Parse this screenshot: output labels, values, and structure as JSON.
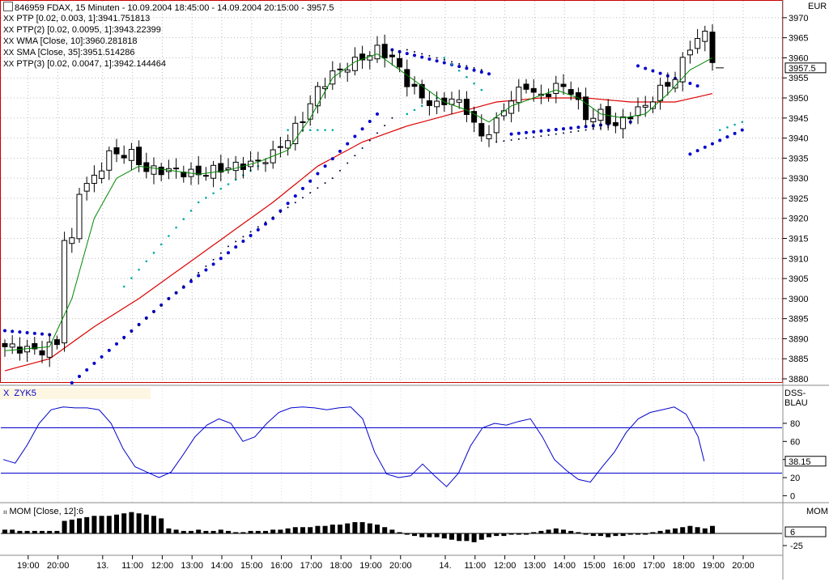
{
  "header": {
    "symbol_line": "846959  FDAX, 15 Minuten - 10.09.2004 18:45:00 - 14.09.2004 20:15:00 - 3957.5",
    "currency": "EUR"
  },
  "legend": [
    {
      "marker": "XX",
      "text": "PTP [0.02, 0.003, 1]:3941.751813",
      "color": "#0000cc"
    },
    {
      "marker": "XX",
      "text": "PTP(2) [0.02, 0.0095, 1]:3943.22399",
      "color": "#00aaaa"
    },
    {
      "marker": "XX",
      "text": "WMA [Close, 10]:3960.281818",
      "color": "#008800"
    },
    {
      "marker": "XX",
      "text": "SMA [Close, 35]:3951.514286",
      "color": "#cc0000"
    },
    {
      "marker": "XX",
      "text": "PTP(3) [0.02, 0.0047, 1]:3942.144464",
      "color": "#000033"
    }
  ],
  "colors": {
    "frame": "#cc0000",
    "wma": "#008800",
    "sma": "#dd0000",
    "ptp": "#0000cc",
    "ptp2": "#00aaaa",
    "ptp3": "#000033",
    "osc": "#0000cc"
  },
  "chart_data": [
    {
      "type": "candlestick",
      "title": "846959  FDAX, 15 Minuten - 10.09.2004 18:45:00 - 14.09.2004 20:15:00 - 3957.5",
      "ylabel": "EUR",
      "ylim": [
        3880,
        3973
      ],
      "yticks": [
        3880,
        3885,
        3890,
        3895,
        3900,
        3905,
        3910,
        3915,
        3920,
        3925,
        3930,
        3935,
        3940,
        3945,
        3950,
        3955,
        3960,
        3965,
        3970
      ],
      "last_value_label": "3957.5",
      "last_value": 3957.5,
      "bar_count": 96,
      "x_tick_labels": [
        {
          "bar": 4,
          "label": "19:00"
        },
        {
          "bar": 8,
          "label": "20:00"
        },
        {
          "bar": 14,
          "label": "13."
        },
        {
          "bar": 18,
          "label": "11:00"
        },
        {
          "bar": 22,
          "label": "12:00"
        },
        {
          "bar": 26,
          "label": "13:00"
        },
        {
          "bar": 30,
          "label": "14:00"
        },
        {
          "bar": 34,
          "label": "15:00"
        },
        {
          "bar": 38,
          "label": "16:00"
        },
        {
          "bar": 42,
          "label": "17:00"
        },
        {
          "bar": 46,
          "label": "18:00"
        },
        {
          "bar": 50,
          "label": "19:00"
        },
        {
          "bar": 54,
          "label": "20:00"
        },
        {
          "bar": 60,
          "label": "14."
        },
        {
          "bar": 64,
          "label": "11:00"
        },
        {
          "bar": 68,
          "label": "12:00"
        },
        {
          "bar": 72,
          "label": "13:00"
        },
        {
          "bar": 76,
          "label": "14:00"
        },
        {
          "bar": 80,
          "label": "15:00"
        },
        {
          "bar": 84,
          "label": "16:00"
        },
        {
          "bar": 88,
          "label": "17:00"
        },
        {
          "bar": 92,
          "label": "18:00"
        },
        {
          "bar": 96,
          "label": "19:00"
        },
        {
          "bar": 100,
          "label": "20:00"
        }
      ],
      "close_keypoints": [
        [
          0,
          3888
        ],
        [
          5,
          3887
        ],
        [
          7,
          3889
        ],
        [
          8,
          3915
        ],
        [
          9,
          3914
        ],
        [
          10,
          3927
        ],
        [
          12,
          3930
        ],
        [
          14,
          3936
        ],
        [
          17,
          3936
        ],
        [
          19,
          3932
        ],
        [
          22,
          3932
        ],
        [
          26,
          3931
        ],
        [
          28,
          3932
        ],
        [
          31,
          3933
        ],
        [
          34,
          3934
        ],
        [
          36,
          3936
        ],
        [
          38,
          3940
        ],
        [
          40,
          3945
        ],
        [
          42,
          3952
        ],
        [
          44,
          3956
        ],
        [
          46,
          3958
        ],
        [
          48,
          3960
        ],
        [
          50,
          3962
        ],
        [
          52,
          3960
        ],
        [
          54,
          3954
        ],
        [
          56,
          3950
        ],
        [
          58,
          3948
        ],
        [
          60,
          3950
        ],
        [
          62,
          3947
        ],
        [
          64,
          3940
        ],
        [
          66,
          3944
        ],
        [
          68,
          3950
        ],
        [
          70,
          3953
        ],
        [
          72,
          3950
        ],
        [
          74,
          3953
        ],
        [
          76,
          3952
        ],
        [
          78,
          3945
        ],
        [
          80,
          3946
        ],
        [
          82,
          3943
        ],
        [
          84,
          3946
        ],
        [
          86,
          3948
        ],
        [
          88,
          3952
        ],
        [
          90,
          3955
        ],
        [
          92,
          3963
        ],
        [
          94,
          3966
        ],
        [
          95,
          3960
        ],
        [
          96,
          3957.5
        ]
      ],
      "wma_keypoints": [
        [
          0,
          3887
        ],
        [
          6,
          3888
        ],
        [
          9,
          3900
        ],
        [
          12,
          3920
        ],
        [
          15,
          3930
        ],
        [
          18,
          3933
        ],
        [
          22,
          3932
        ],
        [
          26,
          3931
        ],
        [
          30,
          3932
        ],
        [
          34,
          3934
        ],
        [
          38,
          3937
        ],
        [
          41,
          3945
        ],
        [
          44,
          3955
        ],
        [
          47,
          3959
        ],
        [
          50,
          3961
        ],
        [
          53,
          3957
        ],
        [
          56,
          3953
        ],
        [
          59,
          3949
        ],
        [
          62,
          3947
        ],
        [
          65,
          3944
        ],
        [
          68,
          3948
        ],
        [
          71,
          3950
        ],
        [
          74,
          3952
        ],
        [
          77,
          3950
        ],
        [
          80,
          3946
        ],
        [
          83,
          3945
        ],
        [
          86,
          3946
        ],
        [
          89,
          3951
        ],
        [
          92,
          3957
        ],
        [
          95,
          3960
        ],
        [
          96,
          3960.3
        ]
      ],
      "sma_keypoints": [
        [
          0,
          3882
        ],
        [
          6,
          3885
        ],
        [
          12,
          3893
        ],
        [
          18,
          3900
        ],
        [
          24,
          3908
        ],
        [
          30,
          3916
        ],
        [
          36,
          3924
        ],
        [
          42,
          3933
        ],
        [
          48,
          3939
        ],
        [
          54,
          3943
        ],
        [
          60,
          3946
        ],
        [
          66,
          3949
        ],
        [
          72,
          3950
        ],
        [
          78,
          3950
        ],
        [
          84,
          3949
        ],
        [
          90,
          3949
        ],
        [
          96,
          3951.5
        ]
      ],
      "ptp_segments": [
        {
          "series": "ptp",
          "points": [
            [
              0,
              3892
            ],
            [
              6,
              3891
            ]
          ]
        },
        {
          "series": "ptp",
          "points": [
            [
              9,
              3879
            ],
            [
              22,
              3900
            ],
            [
              36,
              3920
            ],
            [
              50,
              3946
            ]
          ]
        },
        {
          "series": "ptp",
          "points": [
            [
              52,
              3962
            ],
            [
              65,
              3956
            ]
          ]
        },
        {
          "series": "ptp",
          "points": [
            [
              68,
              3941
            ],
            [
              84,
              3944
            ]
          ]
        },
        {
          "series": "ptp",
          "points": [
            [
              85,
              3958
            ],
            [
              93,
              3953
            ]
          ]
        },
        {
          "series": "ptp",
          "points": [
            [
              92,
              3936
            ],
            [
              99,
              3942
            ]
          ]
        },
        {
          "series": "ptp2",
          "points": [
            [
              16,
              3903
            ],
            [
              26,
              3924
            ],
            [
              34,
              3933
            ]
          ]
        },
        {
          "series": "ptp2",
          "points": [
            [
              38,
              3942
            ],
            [
              44,
              3942
            ]
          ]
        },
        {
          "series": "ptp2",
          "points": [
            [
              54,
              3946
            ],
            [
              58,
              3950
            ]
          ]
        },
        {
          "series": "ptp2",
          "points": [
            [
              59,
              3960
            ],
            [
              64,
              3952
            ]
          ]
        },
        {
          "series": "ptp2",
          "points": [
            [
              96,
              3942
            ],
            [
              99,
              3944
            ]
          ]
        },
        {
          "series": "ptp3",
          "points": [
            [
              16,
              3890
            ],
            [
              30,
              3913
            ],
            [
              44,
              3930
            ],
            [
              52,
              3945
            ]
          ]
        },
        {
          "series": "ptp3",
          "points": [
            [
              54,
              3962
            ],
            [
              64,
              3957
            ]
          ]
        },
        {
          "series": "ptp3",
          "points": [
            [
              66,
              3939
            ],
            [
              82,
              3943
            ]
          ]
        }
      ]
    },
    {
      "type": "line",
      "title": "ZYK5",
      "ylabel": "DSS-BLAU",
      "ylim": [
        -5,
        105
      ],
      "yticks": [
        0,
        20,
        40,
        60,
        80
      ],
      "reference_lines": [
        75,
        25
      ],
      "last_value_label": "38.15",
      "last_value": 38.15,
      "values": [
        [
          0,
          40
        ],
        [
          2,
          36
        ],
        [
          4,
          56
        ],
        [
          6,
          80
        ],
        [
          8,
          95
        ],
        [
          10,
          98
        ],
        [
          12,
          97
        ],
        [
          14,
          97
        ],
        [
          16,
          95
        ],
        [
          18,
          80
        ],
        [
          20,
          52
        ],
        [
          22,
          32
        ],
        [
          24,
          26
        ],
        [
          26,
          20
        ],
        [
          28,
          26
        ],
        [
          30,
          45
        ],
        [
          32,
          65
        ],
        [
          34,
          78
        ],
        [
          36,
          85
        ],
        [
          38,
          80
        ],
        [
          40,
          60
        ],
        [
          42,
          65
        ],
        [
          44,
          80
        ],
        [
          46,
          92
        ],
        [
          48,
          97
        ],
        [
          50,
          98
        ],
        [
          52,
          97
        ],
        [
          54,
          95
        ],
        [
          56,
          97
        ],
        [
          58,
          98
        ],
        [
          60,
          85
        ],
        [
          62,
          48
        ],
        [
          64,
          24
        ],
        [
          66,
          20
        ],
        [
          68,
          22
        ],
        [
          70,
          35
        ],
        [
          72,
          22
        ],
        [
          74,
          10
        ],
        [
          76,
          25
        ],
        [
          78,
          55
        ],
        [
          80,
          75
        ],
        [
          82,
          80
        ],
        [
          84,
          78
        ],
        [
          86,
          82
        ],
        [
          88,
          85
        ],
        [
          90,
          65
        ],
        [
          92,
          40
        ],
        [
          94,
          28
        ],
        [
          96,
          18
        ],
        [
          98,
          15
        ],
        [
          100,
          32
        ],
        [
          102,
          48
        ],
        [
          104,
          70
        ],
        [
          106,
          85
        ],
        [
          108,
          92
        ],
        [
          110,
          95
        ],
        [
          112,
          98
        ],
        [
          114,
          90
        ],
        [
          116,
          65
        ],
        [
          117,
          38.15
        ]
      ]
    },
    {
      "type": "bar",
      "title": "MOM [Close, 12]:6",
      "ylabel": "MOM",
      "yticks": [
        6,
        -25
      ],
      "last_value_label": "6",
      "last_value": 6,
      "values": [
        3,
        3,
        2,
        2,
        2,
        2,
        2,
        2,
        10,
        11,
        12,
        13,
        14,
        14,
        14,
        15,
        16,
        17,
        16,
        15,
        14,
        12,
        4,
        3,
        2,
        2,
        3,
        2,
        2,
        3,
        2,
        1,
        1,
        2,
        2,
        2,
        3,
        3,
        4,
        5,
        5,
        5,
        6,
        6,
        7,
        7,
        8,
        9,
        9,
        8,
        7,
        5,
        3,
        1,
        -1,
        -2,
        -3,
        -3,
        -3,
        -4,
        -5,
        -6,
        -6,
        -7,
        -5,
        -3,
        -2,
        -2,
        -1,
        -1,
        -1,
        1,
        2,
        3,
        4,
        3,
        2,
        1,
        -1,
        -2,
        -2,
        -3,
        -2,
        -2,
        -1,
        -1,
        -1,
        1,
        2,
        3,
        4,
        5,
        6,
        5,
        4,
        6
      ]
    }
  ]
}
